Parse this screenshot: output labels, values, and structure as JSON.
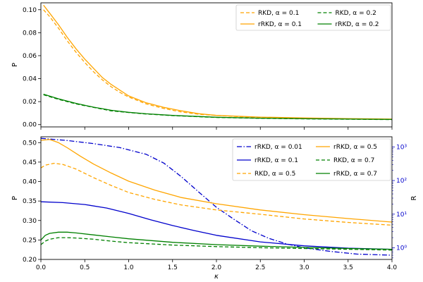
{
  "chart_data": [
    {
      "type": "line",
      "xlabel": "",
      "ylabel": "P",
      "xlim": [
        0,
        4.0
      ],
      "ylim": [
        -0.002,
        0.106
      ],
      "yticks": [
        "0.00",
        "0.02",
        "0.04",
        "0.06",
        "0.08",
        "0.10"
      ],
      "legend_position": "top-right",
      "legend_columns": 2,
      "series": [
        {
          "name": "RKD,  α = 0.1",
          "color": "#ffa500",
          "dash": "dashed",
          "x": [
            0.03,
            0.1,
            0.2,
            0.3,
            0.4,
            0.5,
            0.6,
            0.7,
            0.8,
            0.9,
            1.0,
            1.2,
            1.4,
            1.6,
            1.8,
            2.0,
            2.5,
            3.0,
            3.5,
            4.0
          ],
          "y": [
            0.1,
            0.094,
            0.084,
            0.073,
            0.063,
            0.054,
            0.046,
            0.039,
            0.033,
            0.028,
            0.024,
            0.018,
            0.014,
            0.011,
            0.009,
            0.008,
            0.006,
            0.0055,
            0.005,
            0.0045
          ]
        },
        {
          "name": "rRKD, α = 0.1",
          "color": "#ffa500",
          "dash": "solid",
          "x": [
            0.03,
            0.1,
            0.2,
            0.3,
            0.4,
            0.5,
            0.6,
            0.7,
            0.8,
            0.9,
            1.0,
            1.2,
            1.4,
            1.6,
            1.8,
            2.0,
            2.5,
            3.0,
            3.5,
            4.0
          ],
          "y": [
            0.104,
            0.097,
            0.087,
            0.076,
            0.066,
            0.057,
            0.049,
            0.041,
            0.035,
            0.03,
            0.025,
            0.019,
            0.015,
            0.012,
            0.0095,
            0.008,
            0.0065,
            0.0058,
            0.0052,
            0.0048
          ]
        },
        {
          "name": "RKD,  α = 0.2",
          "color": "#008000",
          "dash": "dashed",
          "x": [
            0.03,
            0.2,
            0.4,
            0.6,
            0.8,
            1.0,
            1.2,
            1.5,
            2.0,
            2.5,
            3.0,
            3.5,
            4.0
          ],
          "y": [
            0.026,
            0.022,
            0.018,
            0.015,
            0.012,
            0.0105,
            0.0092,
            0.0078,
            0.0062,
            0.0055,
            0.005,
            0.0047,
            0.0044
          ]
        },
        {
          "name": "rRKD, α = 0.2",
          "color": "#008000",
          "dash": "solid",
          "x": [
            0.03,
            0.2,
            0.4,
            0.6,
            0.8,
            1.0,
            1.2,
            1.5,
            2.0,
            2.5,
            3.0,
            3.5,
            4.0
          ],
          "y": [
            0.0265,
            0.0225,
            0.0185,
            0.0152,
            0.0125,
            0.0107,
            0.0094,
            0.008,
            0.0064,
            0.0056,
            0.0051,
            0.0048,
            0.0045
          ]
        }
      ]
    },
    {
      "type": "line",
      "xlabel": "κ",
      "ylabel": "P",
      "ylabel_right": "R",
      "xlim": [
        0,
        4.0
      ],
      "ylim": [
        0.2,
        0.515
      ],
      "xticks": [
        "0.0",
        "0.5",
        "1.0",
        "1.5",
        "2.0",
        "2.5",
        "3.0",
        "3.5",
        "4.0"
      ],
      "yticks": [
        "0.20",
        "0.25",
        "0.30",
        "0.35",
        "0.40",
        "0.45",
        "0.50"
      ],
      "right_axis": {
        "scale": "log",
        "ylim": [
          0.45,
          2000
        ],
        "ticks": [
          "10⁰",
          "10¹",
          "10²",
          "10³"
        ]
      },
      "legend_position": "top-right",
      "legend_columns": 2,
      "series": [
        {
          "name": "rRKD, α = 0.01",
          "color": "#0000cc",
          "dash": "dashdot",
          "axis": "right",
          "x": [
            0.0,
            0.3,
            0.6,
            0.9,
            1.2,
            1.4,
            1.6,
            1.8,
            2.0,
            2.2,
            2.4,
            2.6,
            2.8,
            3.0,
            3.3,
            3.6,
            4.0
          ],
          "y": [
            1800,
            1550,
            1250,
            950,
            600,
            330,
            130,
            45,
            16,
            7,
            3.2,
            1.9,
            1.3,
            1.0,
            0.78,
            0.65,
            0.6
          ]
        },
        {
          "name": "rRKD, α = 0.1",
          "color": "#0000cc",
          "dash": "solid",
          "x": [
            0.0,
            0.25,
            0.5,
            0.75,
            1.0,
            1.25,
            1.5,
            1.75,
            2.0,
            2.5,
            3.0,
            3.5,
            4.0
          ],
          "y": [
            0.348,
            0.346,
            0.341,
            0.332,
            0.318,
            0.302,
            0.287,
            0.274,
            0.262,
            0.245,
            0.235,
            0.229,
            0.226
          ]
        },
        {
          "name": "RKD,  α = 0.5",
          "color": "#ffa500",
          "dash": "dashed",
          "x": [
            0.0,
            0.05,
            0.15,
            0.25,
            0.4,
            0.6,
            0.8,
            1.0,
            1.3,
            1.6,
            2.0,
            2.5,
            3.0,
            3.5,
            4.0
          ],
          "y": [
            0.435,
            0.442,
            0.447,
            0.444,
            0.432,
            0.41,
            0.39,
            0.372,
            0.354,
            0.34,
            0.327,
            0.316,
            0.304,
            0.295,
            0.288
          ]
        },
        {
          "name": "rRKD, α = 0.5",
          "color": "#ffa500",
          "dash": "solid",
          "x": [
            0.0,
            0.1,
            0.2,
            0.3,
            0.45,
            0.6,
            0.8,
            1.0,
            1.3,
            1.6,
            2.0,
            2.5,
            3.0,
            3.5,
            4.0
          ],
          "y": [
            0.506,
            0.508,
            0.5,
            0.487,
            0.465,
            0.445,
            0.422,
            0.401,
            0.378,
            0.359,
            0.343,
            0.327,
            0.315,
            0.305,
            0.296
          ]
        },
        {
          "name": "RKD,  α = 0.7",
          "color": "#008000",
          "dash": "dashed",
          "x": [
            0.0,
            0.05,
            0.1,
            0.2,
            0.3,
            0.4,
            0.6,
            0.8,
            1.0,
            1.5,
            2.0,
            2.5,
            3.0,
            3.5,
            4.0
          ],
          "y": [
            0.238,
            0.247,
            0.252,
            0.256,
            0.256,
            0.255,
            0.252,
            0.247,
            0.243,
            0.237,
            0.233,
            0.23,
            0.228,
            0.226,
            0.224
          ]
        },
        {
          "name": "rRKD, α = 0.7",
          "color": "#008000",
          "dash": "solid",
          "x": [
            0.0,
            0.05,
            0.1,
            0.2,
            0.3,
            0.4,
            0.6,
            0.8,
            1.0,
            1.5,
            2.0,
            2.5,
            3.0,
            3.5,
            4.0
          ],
          "y": [
            0.25,
            0.262,
            0.267,
            0.27,
            0.27,
            0.268,
            0.263,
            0.258,
            0.253,
            0.244,
            0.238,
            0.234,
            0.231,
            0.228,
            0.226
          ]
        }
      ]
    }
  ]
}
